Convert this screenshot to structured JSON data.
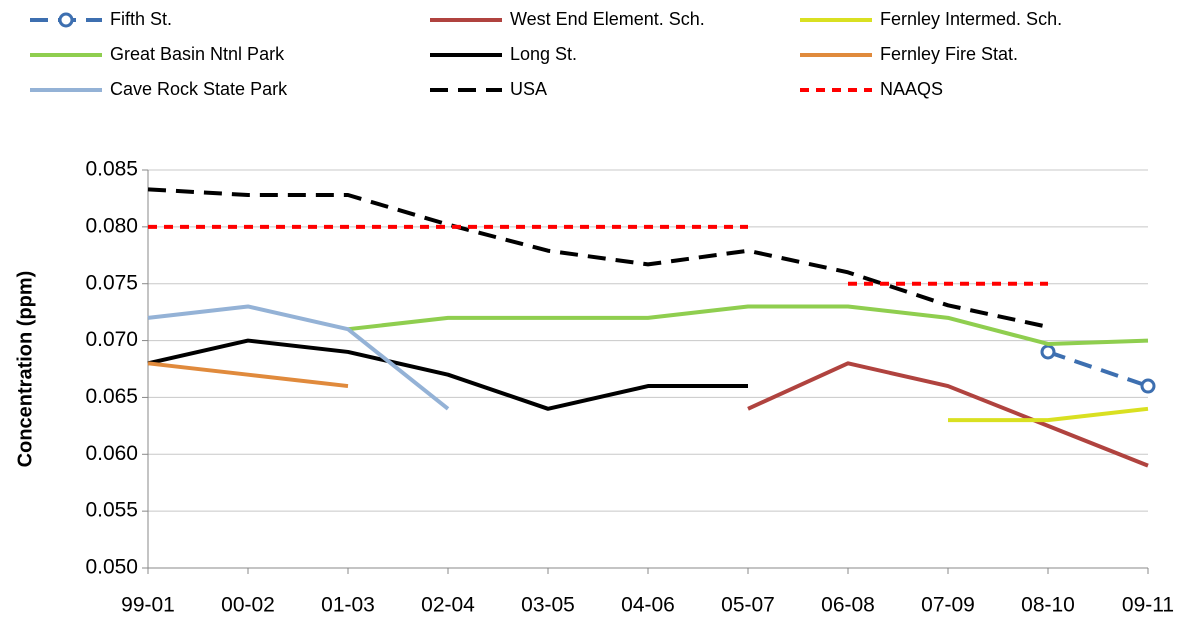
{
  "chart_data": {
    "type": "line",
    "y_label": "Concentration (ppm)",
    "categories": [
      "99-01",
      "00-02",
      "01-03",
      "02-04",
      "03-05",
      "04-06",
      "05-07",
      "06-08",
      "07-09",
      "08-10",
      "09-11"
    ],
    "ylim": [
      0.05,
      0.085
    ],
    "yticks": [
      {
        "value": 0.05,
        "label": "0.050"
      },
      0.055,
      {
        "value": 0.06,
        "label": "0.060"
      },
      0.065,
      {
        "value": 0.07,
        "label": "0.070"
      },
      0.075,
      {
        "value": 0.08,
        "label": "0.080"
      },
      0.085
    ],
    "grid": true,
    "series": [
      {
        "name": "Fifth St.",
        "color": "#3d6fb0",
        "dash": "dashed",
        "marker": "circle",
        "values": [
          null,
          null,
          null,
          null,
          null,
          null,
          null,
          null,
          null,
          0.069,
          0.066
        ]
      },
      {
        "name": "West End Element. Sch.",
        "color": "#b0433f",
        "values": [
          null,
          null,
          null,
          null,
          null,
          null,
          0.064,
          0.068,
          0.066,
          0.0625,
          0.059
        ]
      },
      {
        "name": "Fernley Intermed. Sch.",
        "color": "#d9e021",
        "values": [
          null,
          null,
          null,
          null,
          null,
          null,
          null,
          null,
          0.063,
          0.063,
          0.064
        ]
      },
      {
        "name": "Great Basin Ntnl Park",
        "color": "#8fce4f",
        "values": [
          null,
          null,
          0.071,
          0.072,
          0.072,
          0.072,
          0.073,
          0.073,
          0.072,
          0.0697,
          0.07
        ]
      },
      {
        "name": "Long St.",
        "color": "#000000",
        "values": [
          0.068,
          0.07,
          0.069,
          0.067,
          0.064,
          0.066,
          0.066,
          null,
          null,
          null,
          null
        ]
      },
      {
        "name": "Fernley Fire Stat.",
        "color": "#e08a3c",
        "values": [
          0.068,
          0.067,
          0.066,
          null,
          null,
          null,
          null,
          null,
          null,
          null,
          null
        ]
      },
      {
        "name": "Cave Rock State Park",
        "color": "#94b2d6",
        "values": [
          0.072,
          0.073,
          0.071,
          0.064,
          null,
          null,
          null,
          null,
          null,
          null,
          null
        ]
      },
      {
        "name": "USA",
        "color": "#000000",
        "dash": "dashed",
        "values": [
          0.0833,
          0.0828,
          0.0828,
          0.0802,
          0.0779,
          0.0767,
          0.0779,
          0.076,
          0.0731,
          0.0712,
          null
        ]
      },
      {
        "name": "NAAQS",
        "color": "#ff0000",
        "dash": "dotted",
        "connect": "equal",
        "values": [
          0.08,
          0.08,
          0.08,
          0.08,
          0.08,
          0.08,
          0.08,
          0.075,
          0.075,
          0.075,
          null
        ]
      }
    ]
  }
}
